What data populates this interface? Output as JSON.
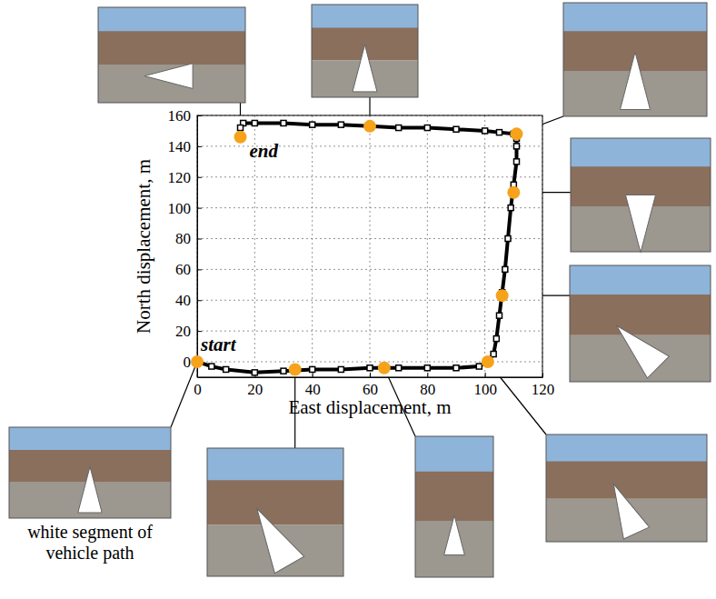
{
  "chart_data": {
    "type": "line",
    "x_label": "East displacement, m",
    "y_label": "North displacement, m",
    "xlim": [
      0,
      120
    ],
    "xticks": [
      0,
      20,
      40,
      60,
      80,
      100,
      120
    ],
    "ylim": [
      -10,
      160
    ],
    "yticks": [
      0,
      20,
      40,
      60,
      80,
      100,
      120,
      140,
      160
    ],
    "grid": true,
    "annotations": [
      "start",
      "end",
      "white segment of vehicle path"
    ],
    "series": [
      {
        "color": "#000000",
        "marker": "square",
        "line_style": "solid",
        "x": [
          0,
          5,
          10,
          20,
          30,
          40,
          50,
          60,
          70,
          80,
          90,
          98,
          101,
          103,
          104,
          105,
          106,
          107,
          108,
          109,
          110,
          111,
          111,
          111,
          110,
          105,
          100,
          90,
          80,
          70,
          60,
          50,
          40,
          30,
          20,
          16,
          15,
          15
        ],
        "values": [
          0,
          -3,
          -5,
          -7,
          -6,
          -5,
          -5,
          -4,
          -4,
          -4,
          -4,
          -3,
          0,
          5,
          15,
          30,
          45,
          60,
          80,
          100,
          115,
          130,
          140,
          145,
          148,
          149,
          150,
          151,
          152,
          152,
          153,
          154,
          154,
          155,
          155,
          155,
          152,
          146
        ]
      },
      {
        "color": "#f7a21b",
        "type": "scatter",
        "marker": "circle",
        "x": [
          0,
          34,
          65,
          101,
          106,
          110,
          111,
          60,
          15
        ],
        "values": [
          0,
          -5,
          -4,
          0,
          43,
          110,
          148,
          153,
          146
        ]
      }
    ]
  }
}
